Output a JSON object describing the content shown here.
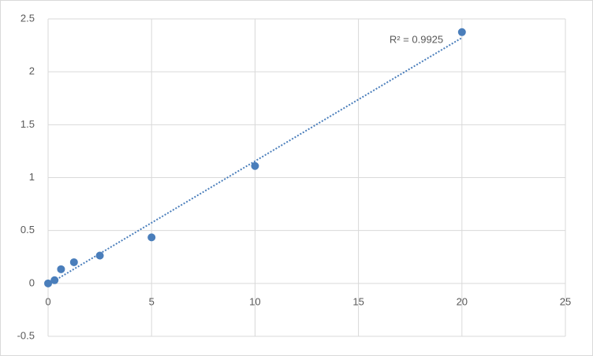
{
  "chart_data": {
    "type": "scatter",
    "x": [
      0,
      0.3125,
      0.625,
      1.25,
      2.5,
      5,
      10,
      20
    ],
    "values": [
      0,
      0.03,
      0.134,
      0.2,
      0.263,
      0.435,
      1.11,
      2.375
    ],
    "color": "#4a7ebb",
    "xlim": [
      0,
      25
    ],
    "xticks": [
      0,
      5,
      10,
      15,
      20,
      25
    ],
    "ylim": [
      -0.5,
      2.5
    ],
    "yticks": [
      -0.5,
      0,
      0.5,
      1,
      1.5,
      2,
      2.5
    ],
    "grid": true,
    "trendline": "linear",
    "annotation": "R² = 0.9925"
  }
}
